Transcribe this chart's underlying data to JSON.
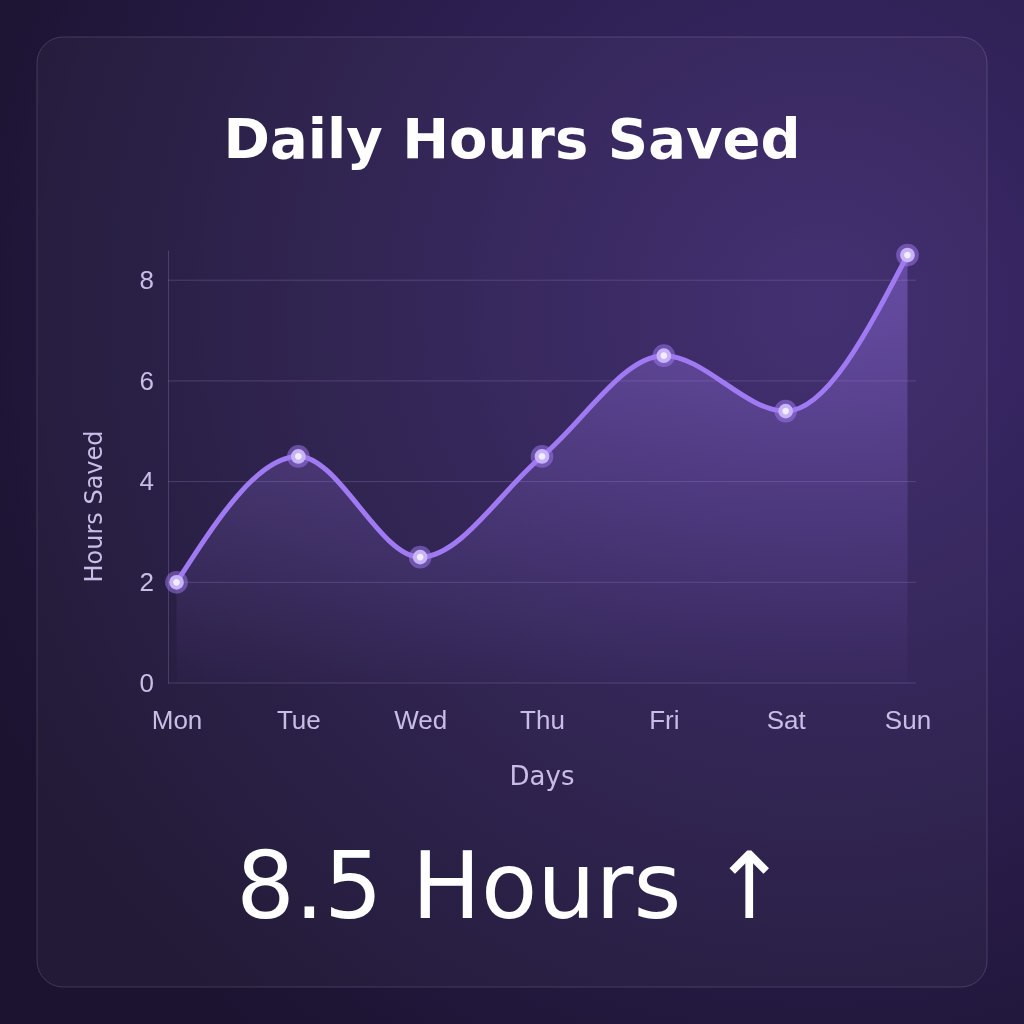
{
  "chart_data": {
    "type": "area",
    "title": "Daily Hours Saved",
    "xlabel": "Days",
    "ylabel": "Hours Saved",
    "categories": [
      "Mon",
      "Tue",
      "Wed",
      "Thu",
      "Fri",
      "Sat",
      "Sun"
    ],
    "series": [
      {
        "color": "#a07af2",
        "values": [
          2,
          4.5,
          2.5,
          4.5,
          6.5,
          5.4,
          8.5
        ]
      }
    ],
    "ylim": [
      0,
      8.6
    ],
    "yticks": [
      0,
      2,
      4,
      6,
      8
    ],
    "grid": "y",
    "marker": "circle",
    "annotations": [
      "8.5 Hours ↑"
    ]
  }
}
